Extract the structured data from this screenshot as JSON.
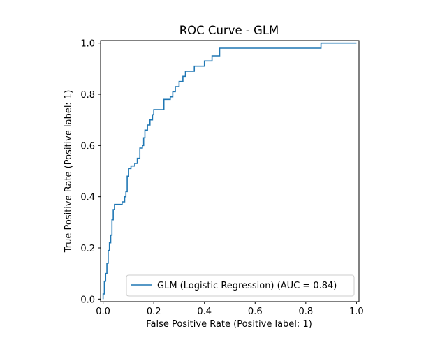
{
  "chart_data": {
    "type": "line",
    "title": "ROC Curve - GLM",
    "xlabel": "False Positive Rate (Positive label: 1)",
    "ylabel": "True Positive Rate (Positive label: 1)",
    "xlim": [
      -0.01,
      1.01
    ],
    "ylim": [
      -0.01,
      1.01
    ],
    "xticks": [
      0.0,
      0.2,
      0.4,
      0.6,
      0.8,
      1.0
    ],
    "yticks": [
      0.0,
      0.2,
      0.4,
      0.6,
      0.8,
      1.0
    ],
    "xtick_labels": [
      "0.0",
      "0.2",
      "0.4",
      "0.6",
      "0.8",
      "1.0"
    ],
    "ytick_labels": [
      "0.0",
      "0.2",
      "0.4",
      "0.6",
      "0.8",
      "1.0"
    ],
    "grid": false,
    "legend_position": "lower-right",
    "series": [
      {
        "name": "GLM (Logistic Regression) (AUC = 0.84)",
        "color": "#1f77b4",
        "x": [
          0.0,
          0.0,
          0.005,
          0.005,
          0.01,
          0.01,
          0.015,
          0.015,
          0.02,
          0.02,
          0.025,
          0.025,
          0.03,
          0.03,
          0.035,
          0.035,
          0.04,
          0.04,
          0.045,
          0.045,
          0.05,
          0.05,
          0.055,
          0.055,
          0.075,
          0.075,
          0.085,
          0.085,
          0.09,
          0.09,
          0.095,
          0.095,
          0.1,
          0.1,
          0.11,
          0.11,
          0.125,
          0.125,
          0.13,
          0.13,
          0.135,
          0.135,
          0.145,
          0.145,
          0.155,
          0.155,
          0.16,
          0.16,
          0.165,
          0.165,
          0.175,
          0.175,
          0.185,
          0.185,
          0.195,
          0.195,
          0.2,
          0.2,
          0.24,
          0.24,
          0.265,
          0.265,
          0.275,
          0.275,
          0.285,
          0.285,
          0.3,
          0.3,
          0.315,
          0.315,
          0.325,
          0.325,
          0.36,
          0.36,
          0.4,
          0.4,
          0.43,
          0.43,
          0.46,
          0.46,
          0.86,
          0.86,
          1.0
        ],
        "y": [
          0.0,
          0.02,
          0.02,
          0.07,
          0.07,
          0.1,
          0.1,
          0.14,
          0.14,
          0.19,
          0.19,
          0.22,
          0.22,
          0.25,
          0.25,
          0.31,
          0.31,
          0.35,
          0.35,
          0.37,
          0.37,
          0.37,
          0.37,
          0.37,
          0.37,
          0.38,
          0.38,
          0.4,
          0.4,
          0.42,
          0.42,
          0.48,
          0.48,
          0.51,
          0.51,
          0.52,
          0.52,
          0.53,
          0.53,
          0.53,
          0.53,
          0.55,
          0.55,
          0.59,
          0.59,
          0.6,
          0.6,
          0.63,
          0.63,
          0.66,
          0.66,
          0.68,
          0.68,
          0.7,
          0.7,
          0.72,
          0.72,
          0.74,
          0.74,
          0.78,
          0.78,
          0.79,
          0.79,
          0.81,
          0.81,
          0.83,
          0.83,
          0.85,
          0.85,
          0.87,
          0.87,
          0.89,
          0.89,
          0.91,
          0.91,
          0.93,
          0.93,
          0.95,
          0.95,
          0.98,
          0.98,
          1.0,
          1.0
        ]
      }
    ]
  }
}
